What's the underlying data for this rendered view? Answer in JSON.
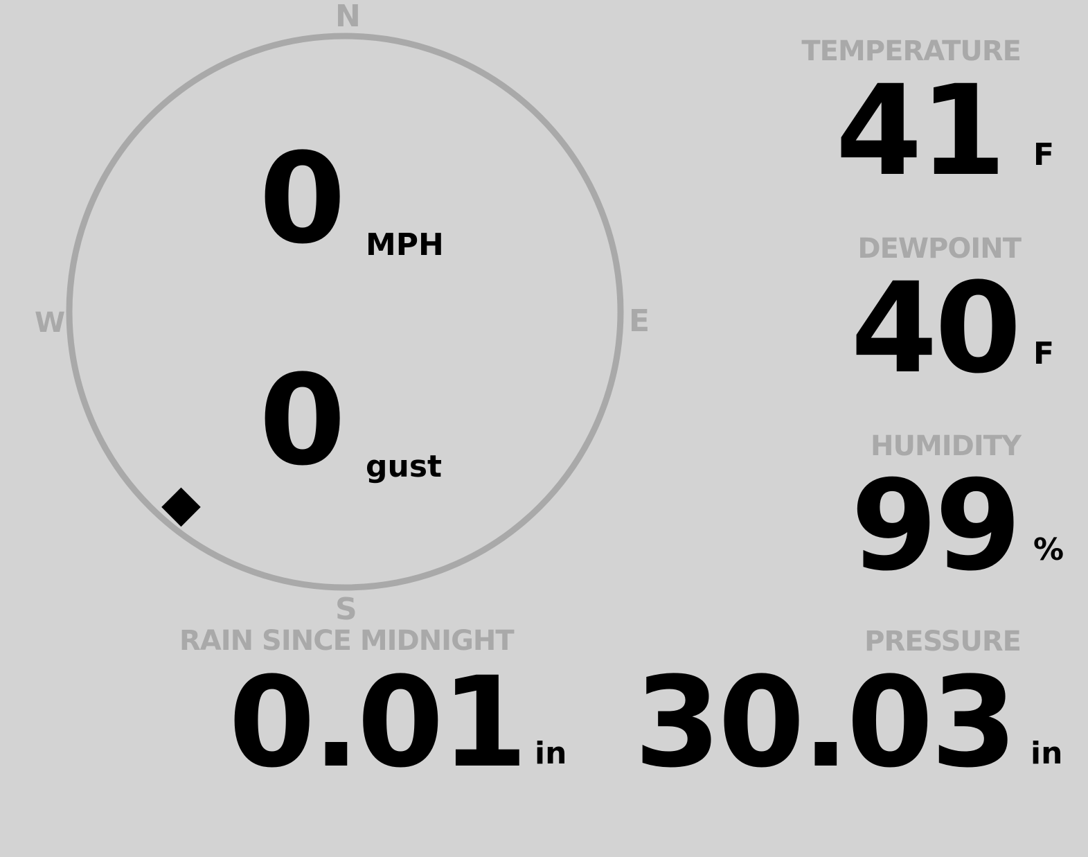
{
  "colors": {
    "background": "#d3d3d3",
    "label": "#a9a9a9",
    "value": "#000000"
  },
  "wind": {
    "speed": "0",
    "speed_unit": "MPH",
    "gust": "0",
    "gust_unit": "gust",
    "direction_degrees": 220,
    "cardinals": {
      "n": "N",
      "e": "E",
      "s": "S",
      "w": "W"
    }
  },
  "temperature": {
    "label": "TEMPERATURE",
    "value": "41",
    "unit": "F"
  },
  "dewpoint": {
    "label": "DEWPOINT",
    "value": "40",
    "unit": "F"
  },
  "humidity": {
    "label": "HUMIDITY",
    "value": "99",
    "unit": "%"
  },
  "rain": {
    "label": "RAIN SINCE MIDNIGHT",
    "value": "0.01",
    "unit": "in"
  },
  "pressure": {
    "label": "PRESSURE",
    "value": "30.03",
    "unit": "in"
  }
}
